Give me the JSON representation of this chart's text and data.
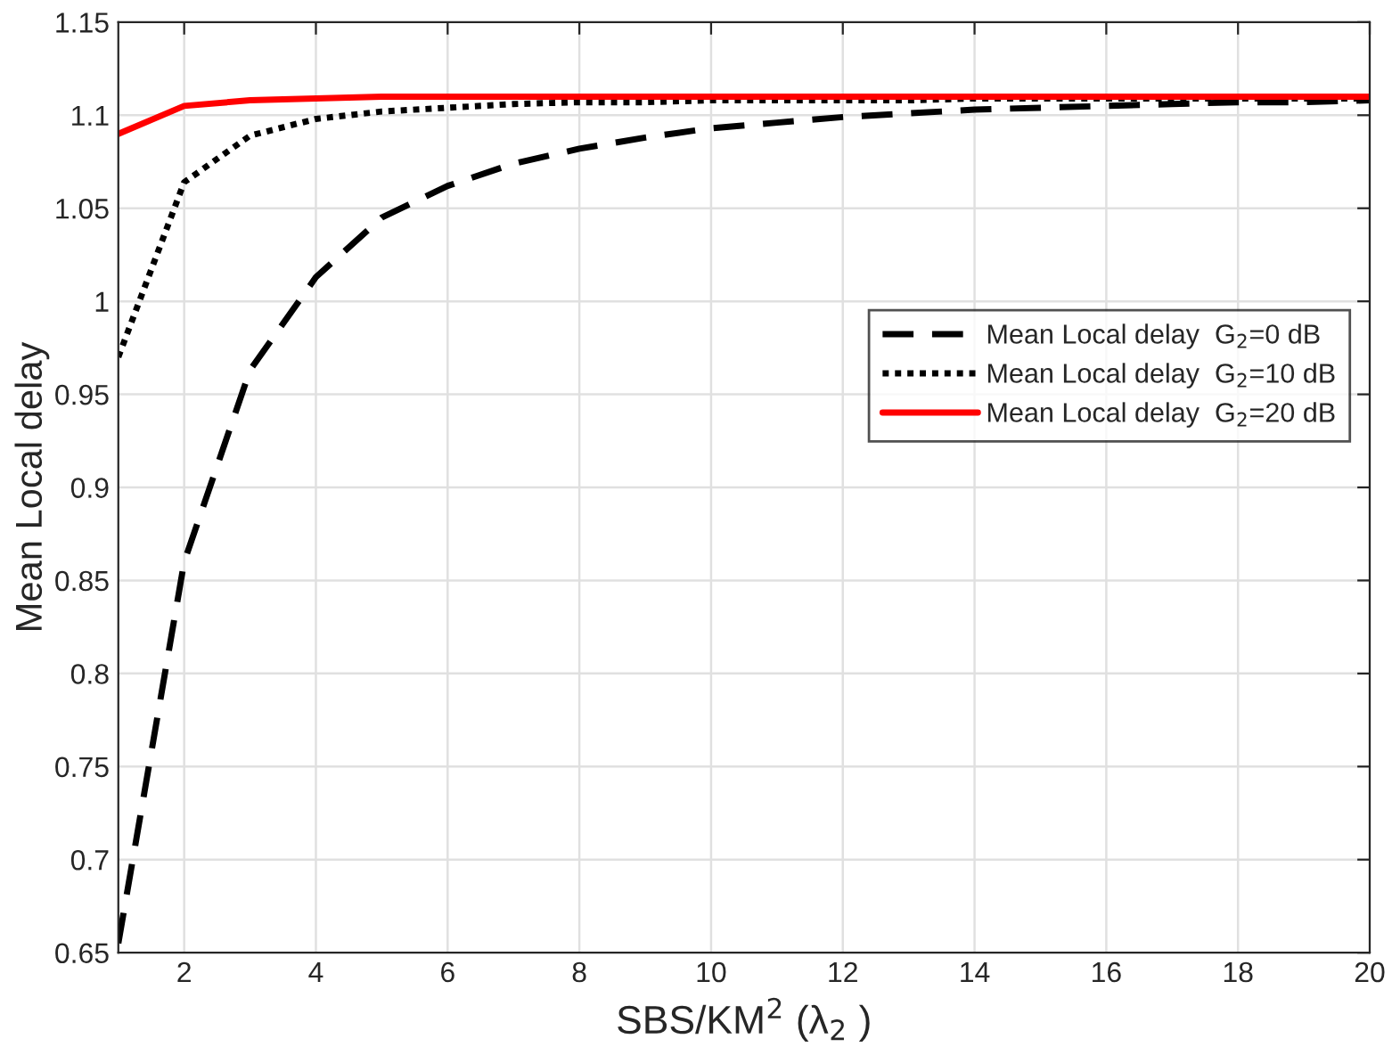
{
  "chart_data": {
    "type": "line",
    "xlabel": "SBS/KM$^{2}$ (λ$_{2}$ )",
    "ylabel": "Mean Local delay",
    "x": [
      1,
      2,
      3,
      4,
      5,
      6,
      7,
      8,
      9,
      10,
      11,
      12,
      13,
      14,
      15,
      16,
      17,
      18,
      19,
      20
    ],
    "series": [
      {
        "name": "Mean Local delay  G$_{2}$=0 dB",
        "color": "#000000",
        "line_style": "dashed",
        "values": [
          0.655,
          0.86,
          0.963,
          1.013,
          1.045,
          1.062,
          1.074,
          1.082,
          1.088,
          1.093,
          1.096,
          1.099,
          1.101,
          1.103,
          1.104,
          1.105,
          1.106,
          1.107,
          1.107,
          1.108
        ]
      },
      {
        "name": "Mean Local delay  G$_{2}$=10 dB",
        "color": "#000000",
        "line_style": "dotted",
        "values": [
          0.97,
          1.064,
          1.089,
          1.098,
          1.102,
          1.104,
          1.106,
          1.107,
          1.107,
          1.108,
          1.108,
          1.108,
          1.108,
          1.109,
          1.109,
          1.109,
          1.109,
          1.109,
          1.109,
          1.109
        ]
      },
      {
        "name": "Mean Local delay  G$_{2}$=20 dB",
        "color": "#ff0000",
        "line_style": "solid",
        "values": [
          1.09,
          1.105,
          1.108,
          1.109,
          1.11,
          1.11,
          1.11,
          1.11,
          1.11,
          1.11,
          1.11,
          1.11,
          1.11,
          1.11,
          1.11,
          1.11,
          1.11,
          1.11,
          1.11,
          1.11
        ]
      }
    ],
    "xlim": [
      1,
      20
    ],
    "xticks": [
      2,
      4,
      6,
      8,
      10,
      12,
      14,
      16,
      18,
      20
    ],
    "ylim": [
      0.65,
      1.15
    ],
    "yticks": [
      0.65,
      0.7,
      0.75,
      0.8,
      0.85,
      0.9,
      0.95,
      1,
      1.05,
      1.1,
      1.15
    ],
    "grid": true,
    "legend": "right",
    "marker": "none"
  }
}
